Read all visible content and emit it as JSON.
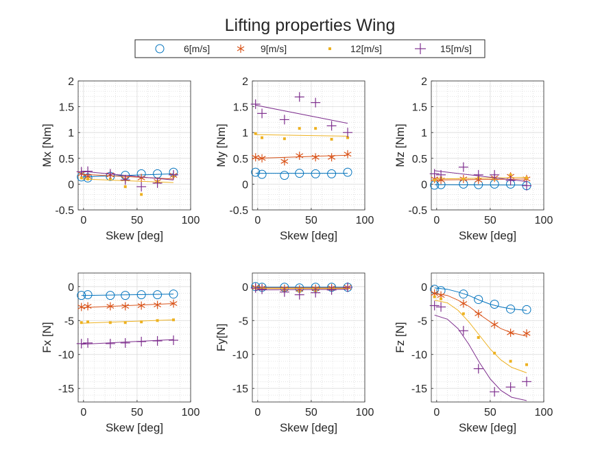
{
  "figure": {
    "title": "Lifting properties Wing",
    "legend": {
      "placement": "top-center",
      "orientation": "horizontal",
      "entries": [
        {
          "name": "6[m/s]",
          "marker": "circle",
          "color": "#0072BD"
        },
        {
          "name": "9[m/s]",
          "marker": "asterisk",
          "color": "#D95319"
        },
        {
          "name": "12[m/s]",
          "marker": "point",
          "color": "#EDB120"
        },
        {
          "name": "15[m/s]",
          "marker": "plus",
          "color": "#7E2F8E"
        }
      ]
    }
  },
  "chart_data": [
    {
      "type": "scatter",
      "id": "mx",
      "xlabel": "Skew [deg]",
      "ylabel": "Mx [Nm]",
      "xlim": [
        -5,
        100
      ],
      "ylim": [
        -0.5,
        2
      ],
      "xticks": [
        0,
        50,
        100
      ],
      "xtick_labels": [
        "0",
        "50",
        "100"
      ],
      "yticks": [
        -0.5,
        0,
        0.5,
        1,
        1.5,
        2
      ],
      "ytick_labels": [
        "-0.5",
        "0",
        "0.5",
        "1",
        "1.5",
        "2"
      ],
      "grid": true,
      "minor_grid": true,
      "x": [
        -2,
        4,
        25,
        39,
        54,
        69,
        84
      ],
      "series": [
        {
          "name": "6[m/s]",
          "values": [
            0.14,
            0.12,
            0.15,
            0.17,
            0.2,
            0.2,
            0.23
          ],
          "fit": [
            [
              -2,
              0.14
            ],
            [
              84,
              0.2
            ]
          ]
        },
        {
          "name": "9[m/s]",
          "values": [
            0.2,
            0.15,
            0.18,
            0.1,
            0.12,
            0.05,
            0.17
          ],
          "fit": [
            [
              -2,
              0.19
            ],
            [
              84,
              0.1
            ]
          ]
        },
        {
          "name": "12[m/s]",
          "values": [
            0.12,
            0.1,
            0.1,
            -0.05,
            -0.2,
            0.05,
            0.15
          ],
          "fit": [
            [
              -2,
              0.1
            ],
            [
              84,
              0.03
            ]
          ]
        },
        {
          "name": "15[m/s]",
          "values": [
            0.24,
            0.25,
            0.2,
            0.08,
            -0.05,
            0.02,
            0.18
          ],
          "fit": [
            [
              -2,
              0.25
            ],
            [
              84,
              0.08
            ]
          ]
        }
      ]
    },
    {
      "type": "scatter",
      "id": "my",
      "xlabel": "Skew [deg]",
      "ylabel": "My [Nm]",
      "xlim": [
        -5,
        100
      ],
      "ylim": [
        -0.5,
        2
      ],
      "xticks": [
        0,
        50,
        100
      ],
      "xtick_labels": [
        "0",
        "50",
        "100"
      ],
      "yticks": [
        -0.5,
        0,
        0.5,
        1,
        1.5,
        2
      ],
      "ytick_labels": [
        "-0.5",
        "0",
        "0.5",
        "1",
        "1.5",
        "2"
      ],
      "grid": true,
      "minor_grid": true,
      "x": [
        -2,
        4,
        25,
        39,
        54,
        69,
        84
      ],
      "series": [
        {
          "name": "6[m/s]",
          "values": [
            0.23,
            0.19,
            0.17,
            0.21,
            0.2,
            0.2,
            0.23
          ],
          "fit": [
            [
              -2,
              0.21
            ],
            [
              84,
              0.21
            ]
          ]
        },
        {
          "name": "9[m/s]",
          "values": [
            0.52,
            0.5,
            0.44,
            0.55,
            0.52,
            0.52,
            0.58
          ],
          "fit": [
            [
              -2,
              0.5
            ],
            [
              84,
              0.56
            ]
          ]
        },
        {
          "name": "12[m/s]",
          "values": [
            0.98,
            0.9,
            0.88,
            1.08,
            1.08,
            0.87,
            0.9
          ],
          "fit": [
            [
              -2,
              0.96
            ],
            [
              84,
              0.93
            ]
          ]
        },
        {
          "name": "15[m/s]",
          "values": [
            1.55,
            1.37,
            1.25,
            1.69,
            1.58,
            1.13,
            1.0
          ],
          "fit": [
            [
              -2,
              1.53
            ],
            [
              84,
              1.18
            ]
          ]
        }
      ]
    },
    {
      "type": "scatter",
      "id": "mz",
      "xlabel": "Skew [deg]",
      "ylabel": "Mz [Nm]",
      "xlim": [
        -5,
        100
      ],
      "ylim": [
        -0.5,
        2
      ],
      "xticks": [
        0,
        50,
        100
      ],
      "xtick_labels": [
        "0",
        "50",
        "100"
      ],
      "yticks": [
        -0.5,
        0,
        0.5,
        1,
        1.5,
        2
      ],
      "ytick_labels": [
        "-0.5",
        "0",
        "0.5",
        "1",
        "1.5",
        "2"
      ],
      "grid": true,
      "minor_grid": true,
      "x": [
        -2,
        4,
        25,
        39,
        54,
        69,
        84
      ],
      "series": [
        {
          "name": "6[m/s]",
          "values": [
            -0.02,
            -0.01,
            0.0,
            -0.01,
            0.0,
            0.0,
            -0.03
          ],
          "fit": [
            [
              -2,
              -0.01
            ],
            [
              84,
              -0.02
            ]
          ]
        },
        {
          "name": "9[m/s]",
          "values": [
            0.1,
            0.08,
            0.1,
            0.08,
            0.12,
            0.15,
            0.1
          ],
          "fit": [
            [
              -2,
              0.08
            ],
            [
              84,
              0.1
            ]
          ]
        },
        {
          "name": "12[m/s]",
          "values": [
            0.08,
            0.12,
            0.1,
            0.12,
            0.1,
            0.18,
            0.12
          ],
          "fit": [
            [
              -2,
              0.1
            ],
            [
              84,
              0.13
            ]
          ]
        },
        {
          "name": "15[m/s]",
          "values": [
            0.2,
            0.18,
            0.33,
            0.18,
            0.18,
            0.07,
            -0.03
          ],
          "fit": [
            [
              -2,
              0.26
            ],
            [
              84,
              0.05
            ]
          ]
        }
      ]
    },
    {
      "type": "scatter",
      "id": "fx",
      "xlabel": "Skew [deg]",
      "ylabel": "Fx [N]",
      "xlim": [
        -5,
        100
      ],
      "ylim": [
        -17,
        2
      ],
      "xticks": [
        0,
        50,
        100
      ],
      "xtick_labels": [
        "0",
        "50",
        "100"
      ],
      "yticks": [
        -15,
        -10,
        -5,
        0
      ],
      "ytick_labels": [
        "-15",
        "-10",
        "-5",
        "0"
      ],
      "grid": true,
      "minor_grid": true,
      "x": [
        -2,
        4,
        25,
        39,
        54,
        69,
        84
      ],
      "series": [
        {
          "name": "6[m/s]",
          "values": [
            -1.3,
            -1.2,
            -1.3,
            -1.3,
            -1.2,
            -1.2,
            -1.1
          ],
          "fit": [
            [
              -2,
              -1.3
            ],
            [
              84,
              -1.1
            ]
          ]
        },
        {
          "name": "9[m/s]",
          "values": [
            -3.0,
            -2.9,
            -2.9,
            -2.9,
            -2.8,
            -2.7,
            -2.5
          ],
          "fit": [
            [
              -2,
              -3.1
            ],
            [
              84,
              -2.5
            ]
          ]
        },
        {
          "name": "12[m/s]",
          "values": [
            -5.3,
            -5.2,
            -5.3,
            -5.3,
            -5.2,
            -5.0,
            -4.9
          ],
          "fit": [
            [
              -2,
              -5.4
            ],
            [
              84,
              -4.9
            ]
          ]
        },
        {
          "name": "15[m/s]",
          "values": [
            -8.4,
            -8.3,
            -8.4,
            -8.3,
            -8.1,
            -8.0,
            -7.9
          ],
          "fit": [
            [
              -2,
              -8.5
            ],
            [
              84,
              -7.8
            ]
          ]
        }
      ]
    },
    {
      "type": "scatter",
      "id": "fy",
      "xlabel": "Skew [deg]",
      "ylabel": "Fy[N]",
      "xlim": [
        -5,
        100
      ],
      "ylim": [
        -17,
        2
      ],
      "xticks": [
        0,
        50,
        100
      ],
      "xtick_labels": [
        "0",
        "50",
        "100"
      ],
      "yticks": [
        -15,
        -10,
        -5,
        0
      ],
      "ytick_labels": [
        "-15",
        "-10",
        "-5",
        "0"
      ],
      "grid": true,
      "minor_grid": true,
      "x": [
        -2,
        4,
        25,
        39,
        54,
        69,
        84
      ],
      "series": [
        {
          "name": "6[m/s]",
          "values": [
            0.0,
            -0.1,
            -0.1,
            -0.2,
            -0.1,
            -0.1,
            -0.1
          ],
          "fit": [
            [
              -2,
              -0.1
            ],
            [
              84,
              -0.1
            ]
          ]
        },
        {
          "name": "9[m/s]",
          "values": [
            -0.1,
            -0.2,
            -0.3,
            -0.4,
            -0.3,
            -0.2,
            -0.1
          ],
          "fit": [
            [
              -2,
              -0.2
            ],
            [
              84,
              -0.2
            ]
          ]
        },
        {
          "name": "12[m/s]",
          "values": [
            -0.2,
            -0.3,
            -0.5,
            -0.7,
            -0.6,
            -0.4,
            -0.2
          ],
          "fit": [
            [
              -2,
              -0.3
            ],
            [
              84,
              -0.3
            ]
          ]
        },
        {
          "name": "15[m/s]",
          "values": [
            -0.2,
            -0.4,
            -0.8,
            -1.2,
            -0.9,
            -0.5,
            -0.1
          ],
          "fit": [
            [
              -2,
              -0.5
            ],
            [
              84,
              -0.4
            ]
          ]
        }
      ]
    },
    {
      "type": "scatter",
      "id": "fz",
      "xlabel": "Skew [deg]",
      "ylabel": "Fz [N]",
      "xlim": [
        -5,
        100
      ],
      "ylim": [
        -17,
        2
      ],
      "xticks": [
        0,
        50,
        100
      ],
      "xtick_labels": [
        "0",
        "50",
        "100"
      ],
      "yticks": [
        -15,
        -10,
        -5,
        0
      ],
      "ytick_labels": [
        "-15",
        "-10",
        "-5",
        "0"
      ],
      "grid": true,
      "minor_grid": true,
      "x": [
        -2,
        4,
        25,
        39,
        54,
        69,
        84
      ],
      "series": [
        {
          "name": "6[m/s]",
          "values": [
            -0.4,
            -0.6,
            -1.1,
            -1.9,
            -2.6,
            -3.3,
            -3.4
          ],
          "fit": [
            [
              -2,
              -0.2
            ],
            [
              10,
              -0.4
            ],
            [
              20,
              -0.8
            ],
            [
              30,
              -1.3
            ],
            [
              40,
              -2.0
            ],
            [
              50,
              -2.6
            ],
            [
              60,
              -3.0
            ],
            [
              70,
              -3.3
            ],
            [
              84,
              -3.5
            ]
          ]
        },
        {
          "name": "9[m/s]",
          "values": [
            -1.0,
            -1.3,
            -2.5,
            -4.0,
            -5.6,
            -6.8,
            -6.9
          ],
          "fit": [
            [
              -2,
              -1.0
            ],
            [
              10,
              -1.3
            ],
            [
              20,
              -2.0
            ],
            [
              30,
              -2.9
            ],
            [
              40,
              -4.1
            ],
            [
              50,
              -5.2
            ],
            [
              60,
              -6.2
            ],
            [
              70,
              -6.8
            ],
            [
              84,
              -7.3
            ]
          ]
        },
        {
          "name": "12[m/s]",
          "values": [
            -1.5,
            -1.8,
            -4.0,
            -7.5,
            -9.8,
            -11.0,
            -11.5
          ],
          "fit": [
            [
              -2,
              -2.0
            ],
            [
              10,
              -2.4
            ],
            [
              20,
              -3.5
            ],
            [
              30,
              -5.2
            ],
            [
              40,
              -7.2
            ],
            [
              50,
              -9.2
            ],
            [
              60,
              -10.8
            ],
            [
              70,
              -11.9
            ],
            [
              84,
              -12.7
            ]
          ]
        },
        {
          "name": "15[m/s]",
          "values": [
            -2.8,
            -3.0,
            -6.5,
            -12.1,
            -15.5,
            -14.8,
            -14.0
          ],
          "fit": [
            [
              -2,
              -4.2
            ],
            [
              10,
              -4.8
            ],
            [
              20,
              -6.2
            ],
            [
              30,
              -8.5
            ],
            [
              40,
              -11.2
            ],
            [
              50,
              -13.6
            ],
            [
              60,
              -15.3
            ],
            [
              70,
              -16.3
            ],
            [
              84,
              -16.8
            ]
          ]
        }
      ]
    }
  ]
}
